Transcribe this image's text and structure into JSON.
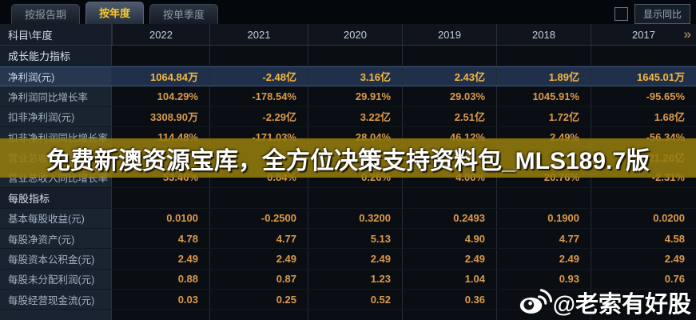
{
  "tab_bar": {
    "tabs": [
      {
        "name": "tab-by-report-period",
        "label": "按报告期",
        "active": false
      },
      {
        "name": "tab-by-year",
        "label": "按年度",
        "active": true
      },
      {
        "name": "tab-by-quarter",
        "label": "按单季度",
        "active": false
      }
    ]
  },
  "controls": {
    "show_yoy_label": "显示同比",
    "show_yoy_checked": false
  },
  "table": {
    "corner_label": "科目\\年度",
    "years": [
      "2022",
      "2021",
      "2020",
      "2019",
      "2018",
      "2017"
    ],
    "more_years_icon": "»",
    "rows": [
      {
        "type": "section",
        "label": "成长能力指标",
        "highlight": false,
        "values": [
          "",
          "",
          "",
          "",
          "",
          ""
        ]
      },
      {
        "type": "data",
        "label": "净利润(元)",
        "highlight": true,
        "values": [
          "1064.84万",
          "-2.48亿",
          "3.16亿",
          "2.43亿",
          "1.89亿",
          "1645.01万"
        ]
      },
      {
        "type": "data",
        "label": "净利润同比增长率",
        "highlight": false,
        "values": [
          "104.29%",
          "-178.54%",
          "29.91%",
          "29.03%",
          "1045.91%",
          "-95.65%"
        ]
      },
      {
        "type": "data",
        "label": "扣非净利润(元)",
        "highlight": false,
        "values": [
          "3308.90万",
          "-2.29亿",
          "3.22亿",
          "2.51亿",
          "1.72亿",
          "1.68亿"
        ]
      },
      {
        "type": "data",
        "label": "扣非净利润同比增长率",
        "highlight": false,
        "values": [
          "114.48%",
          "-171.03%",
          "28.04%",
          "46.12%",
          "2.49%",
          "-56.34%"
        ]
      },
      {
        "type": "data",
        "label": "营业总收入(元)",
        "highlight": false,
        "values": [
          "",
          "",
          "",
          "",
          "",
          "21.26亿"
        ]
      },
      {
        "type": "data",
        "label": "营业总收入同比增长率",
        "highlight": false,
        "values": [
          "53.46%",
          "0.84%",
          "0.26%",
          "4.00%",
          "20.76%",
          "-2.31%"
        ]
      },
      {
        "type": "section",
        "label": "每股指标",
        "highlight": false,
        "values": [
          "",
          "",
          "",
          "",
          "",
          ""
        ]
      },
      {
        "type": "data",
        "label": "基本每股收益(元)",
        "highlight": false,
        "values": [
          "0.0100",
          "-0.2500",
          "0.3200",
          "0.2493",
          "0.1900",
          "0.0200"
        ]
      },
      {
        "type": "data",
        "label": "每股净资产(元)",
        "highlight": false,
        "values": [
          "4.78",
          "4.77",
          "5.13",
          "4.90",
          "4.77",
          "4.58"
        ]
      },
      {
        "type": "data",
        "label": "每股资本公积金(元)",
        "highlight": false,
        "values": [
          "2.49",
          "2.49",
          "2.49",
          "2.49",
          "2.49",
          "2.49"
        ]
      },
      {
        "type": "data",
        "label": "每股未分配利润(元)",
        "highlight": false,
        "values": [
          "0.88",
          "0.87",
          "1.23",
          "1.04",
          "0.93",
          "0.76"
        ]
      },
      {
        "type": "data",
        "label": "每股经营现金流(元)",
        "highlight": false,
        "values": [
          "0.03",
          "0.25",
          "0.52",
          "0.36",
          "",
          ""
        ]
      },
      {
        "type": "partial",
        "label": "",
        "highlight": false,
        "values": [
          "",
          "",
          "",
          "",
          "",
          ""
        ]
      }
    ]
  },
  "watermarks": {
    "banner_text": "免费新澳资源宝库，全方位决策支持资料包_MLS189.7版",
    "weibo_handle": "@老索有好股",
    "weibo_icon": "weibo-eye-icon"
  },
  "colors": {
    "value_text": "#db9a4d",
    "highlight_value_text": "#f4b83f",
    "active_tab_text": "#f7c52e",
    "banner_band": "#947c0e"
  }
}
